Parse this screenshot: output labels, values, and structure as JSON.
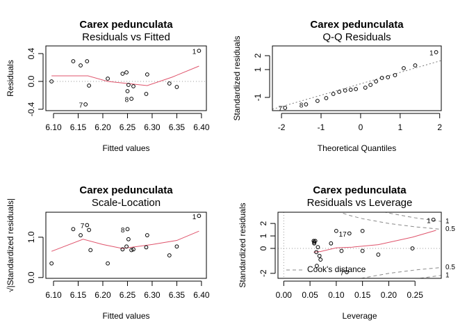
{
  "chart_data": [
    {
      "type": "scatter",
      "title": "Carex pedunculata",
      "subtitle": "Residuals vs Fitted",
      "x_label": "Fitted values",
      "y_label": "Residuals",
      "x": [
        6.096,
        6.14,
        6.155,
        6.168,
        6.172,
        6.165,
        6.21,
        6.24,
        6.248,
        6.25,
        6.252,
        6.258,
        6.262,
        6.288,
        6.29,
        6.335,
        6.35,
        6.395
      ],
      "y": [
        0.0,
        0.29,
        0.23,
        0.29,
        -0.06,
        -0.33,
        0.04,
        0.11,
        0.13,
        -0.14,
        -0.05,
        -0.25,
        -0.07,
        -0.18,
        0.1,
        -0.03,
        -0.08,
        0.44
      ],
      "point_labels": [
        null,
        null,
        null,
        null,
        null,
        "7",
        null,
        null,
        null,
        null,
        null,
        "8",
        null,
        null,
        null,
        null,
        null,
        "1"
      ],
      "smooth": {
        "color": "#DF536B",
        "x": [
          6.096,
          6.14,
          6.17,
          6.21,
          6.25,
          6.29,
          6.34,
          6.395
        ],
        "y": [
          0.08,
          0.08,
          0.08,
          0.0,
          -0.03,
          -0.06,
          0.06,
          0.22
        ]
      },
      "hlines": [
        0
      ],
      "xlim": [
        6.0845,
        6.41
      ],
      "ylim": [
        -0.42,
        0.51
      ],
      "xticks": [
        {
          "value": 6.1,
          "label": "6.10"
        },
        {
          "value": 6.15,
          "label": "6.15"
        },
        {
          "value": 6.2,
          "label": "6.20"
        },
        {
          "value": 6.25,
          "label": "6.25"
        },
        {
          "value": 6.3,
          "label": "6.30"
        },
        {
          "value": 6.35,
          "label": "6.35"
        },
        {
          "value": 6.4,
          "label": "6.40"
        }
      ],
      "yticks": [
        -0.4,
        {
          "value": 0,
          "label": "0.0"
        },
        0.4
      ]
    },
    {
      "type": "scatter",
      "title": "Carex pedunculata",
      "subtitle": "Q-Q Residuals",
      "x_label": "Theoretical Quantiles",
      "y_label": "Standardized residuals",
      "x": [
        -1.91,
        -1.38,
        -1.09,
        -0.87,
        -0.69,
        -0.54,
        -0.39,
        -0.25,
        -0.12,
        0.12,
        0.25,
        0.39,
        0.54,
        0.69,
        0.87,
        1.09,
        1.38,
        1.91
      ],
      "y": [
        -1.75,
        -1.5,
        -1.25,
        -1.05,
        -0.75,
        -0.6,
        -0.5,
        -0.45,
        -0.4,
        -0.3,
        -0.1,
        0.15,
        0.4,
        0.45,
        0.6,
        1.1,
        1.3,
        2.25
      ],
      "point_labels": [
        "7",
        "8",
        null,
        null,
        null,
        null,
        null,
        null,
        null,
        null,
        null,
        null,
        null,
        null,
        null,
        null,
        null,
        "1"
      ],
      "ref_line": {
        "x": [
          -2.23,
          2.04
        ],
        "y": [
          -1.85,
          1.65
        ]
      },
      "xlim": [
        -2.23,
        2.04
      ],
      "ylim": [
        -1.95,
        2.7
      ],
      "xticks": [
        -2,
        -1,
        0,
        1,
        2
      ],
      "yticks": [
        -1,
        1,
        2
      ]
    },
    {
      "type": "scatter",
      "title": "Carex pedunculata",
      "subtitle": "Scale-Location",
      "x_label": "Fitted values",
      "y_label": "√|Standardized residuals|",
      "x": [
        6.096,
        6.14,
        6.155,
        6.168,
        6.172,
        6.175,
        6.21,
        6.24,
        6.248,
        6.25,
        6.252,
        6.258,
        6.262,
        6.288,
        6.29,
        6.335,
        6.35,
        6.395
      ],
      "y": [
        0.35,
        1.2,
        1.05,
        1.3,
        1.18,
        0.68,
        0.35,
        0.7,
        0.77,
        1.2,
        0.95,
        0.68,
        0.7,
        0.75,
        1.05,
        0.55,
        0.77,
        1.53
      ],
      "point_labels": [
        null,
        null,
        null,
        "7",
        null,
        null,
        null,
        null,
        null,
        "8",
        null,
        null,
        null,
        null,
        null,
        null,
        null,
        "1"
      ],
      "smooth": {
        "color": "#DF536B",
        "x": [
          6.096,
          6.16,
          6.2,
          6.24,
          6.3,
          6.35,
          6.395
        ],
        "y": [
          0.65,
          0.95,
          0.82,
          0.72,
          0.82,
          0.92,
          1.15
        ]
      },
      "xlim": [
        6.0845,
        6.41
      ],
      "ylim": [
        -0.02,
        1.62
      ],
      "xticks": [
        {
          "value": 6.1,
          "label": "6.10"
        },
        {
          "value": 6.15,
          "label": "6.15"
        },
        {
          "value": 6.2,
          "label": "6.20"
        },
        {
          "value": 6.25,
          "label": "6.25"
        },
        {
          "value": 6.3,
          "label": "6.30"
        },
        {
          "value": 6.35,
          "label": "6.35"
        },
        {
          "value": 6.4,
          "label": "6.40"
        }
      ],
      "yticks": [
        {
          "value": 0,
          "label": "0.0"
        },
        {
          "value": 1,
          "label": "1.0"
        }
      ]
    },
    {
      "type": "scatter",
      "title": "Carex pedunculata",
      "subtitle": "Residuals vs Leverage",
      "x_label": "Leverage",
      "y_label": "Standardized residuals",
      "x": [
        0.057,
        0.058,
        0.058,
        0.06,
        0.062,
        0.063,
        0.065,
        0.068,
        0.07,
        0.09,
        0.1,
        0.11,
        0.12,
        0.125,
        0.15,
        0.15,
        0.18,
        0.245,
        0.285
      ],
      "y": [
        0.6,
        0.5,
        0.4,
        0.6,
        -0.3,
        -1.4,
        0.1,
        -0.6,
        -0.9,
        0.4,
        1.4,
        -0.2,
        -1.9,
        1.2,
        1.4,
        -0.2,
        -0.5,
        0.0,
        2.3
      ],
      "point_labels": [
        null,
        null,
        null,
        null,
        null,
        null,
        null,
        null,
        null,
        null,
        null,
        null,
        "7",
        "17",
        null,
        null,
        null,
        null,
        "1"
      ],
      "smooth": {
        "color": "#DF536B",
        "x": [
          0.057,
          0.07,
          0.1,
          0.13,
          0.18,
          0.245,
          0.29
        ],
        "y": [
          -0.3,
          -0.25,
          0.05,
          0.1,
          0.3,
          0.9,
          1.45
        ]
      },
      "hlines": [
        0
      ],
      "vlines": [
        0
      ],
      "cook": {
        "legend": "Cook's distance",
        "x": [
          0.08,
          0.1,
          0.125,
          0.15,
          0.2,
          0.25,
          0.3
        ],
        "levels": [
          {
            "label": "0.5",
            "upper": [
              3.39,
              3.0,
              2.65,
              2.38,
              2.0,
              1.73,
              1.53
            ],
            "lower": [
              -3.39,
              -3.0,
              -2.65,
              -2.38,
              -2.0,
              -1.73,
              -1.53
            ]
          },
          {
            "label": "1",
            "upper": [
              4.8,
              4.24,
              3.74,
              3.37,
              2.83,
              2.45,
              2.16
            ],
            "lower": [
              -4.8,
              -4.24,
              -3.74,
              -3.37,
              -2.83,
              -2.45,
              -2.16
            ]
          }
        ]
      },
      "xlim": [
        -0.011,
        0.3
      ],
      "ylim": [
        -2.4,
        2.9
      ],
      "xticks": [
        {
          "value": 0,
          "label": "0.00"
        },
        {
          "value": 0.05,
          "label": "0.05"
        },
        {
          "value": 0.1,
          "label": "0.10"
        },
        {
          "value": 0.15,
          "label": "0.15"
        },
        {
          "value": 0.2,
          "label": "0.20"
        },
        {
          "value": 0.25,
          "label": "0.25"
        }
      ],
      "yticks": [
        -2,
        0,
        1,
        2
      ]
    }
  ]
}
